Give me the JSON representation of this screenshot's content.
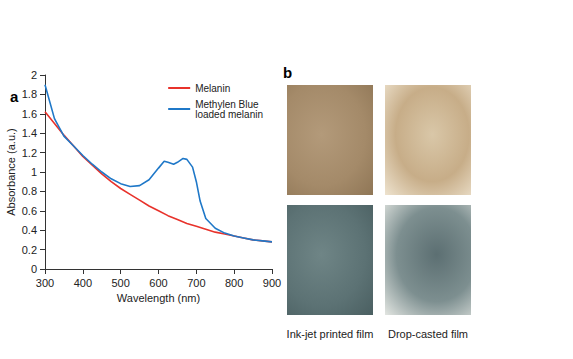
{
  "panel_a": {
    "label": "a"
  },
  "chart_data": {
    "type": "line",
    "x_label": "Wavelength (nm)",
    "y_label": "Absorbance (a.u.)",
    "xlim": [
      300,
      900
    ],
    "xticks": [
      300,
      400,
      500,
      600,
      700,
      800,
      900
    ],
    "ylim": [
      0,
      2
    ],
    "yticks": [
      0,
      0.2,
      0.4,
      0.6,
      0.8,
      1,
      1.2,
      1.4,
      1.6,
      1.8,
      2
    ],
    "grid": false,
    "legend": "upper right",
    "series": [
      {
        "name": "Melanin",
        "color": "#e8322b",
        "x": [
          300,
          325,
          350,
          375,
          400,
          425,
          450,
          475,
          500,
          525,
          550,
          575,
          600,
          625,
          650,
          675,
          700,
          725,
          750,
          775,
          800,
          825,
          850,
          875,
          900
        ],
        "values": [
          1.62,
          1.5,
          1.38,
          1.27,
          1.16,
          1.07,
          0.98,
          0.9,
          0.83,
          0.77,
          0.71,
          0.65,
          0.6,
          0.55,
          0.51,
          0.47,
          0.44,
          0.41,
          0.38,
          0.36,
          0.34,
          0.32,
          0.3,
          0.29,
          0.28
        ]
      },
      {
        "name": "Methylen Blue loaded melanin",
        "color": "#1f78c8",
        "x": [
          300,
          325,
          350,
          375,
          400,
          425,
          450,
          475,
          500,
          525,
          550,
          575,
          600,
          615,
          625,
          640,
          650,
          665,
          675,
          690,
          700,
          710,
          725,
          750,
          775,
          800,
          825,
          850,
          875,
          900
        ],
        "values": [
          1.9,
          1.55,
          1.37,
          1.27,
          1.17,
          1.08,
          1.0,
          0.93,
          0.88,
          0.85,
          0.86,
          0.92,
          1.04,
          1.11,
          1.1,
          1.08,
          1.1,
          1.14,
          1.13,
          1.05,
          0.9,
          0.7,
          0.52,
          0.42,
          0.37,
          0.34,
          0.32,
          0.3,
          0.29,
          0.28
        ]
      }
    ]
  },
  "panel_b": {
    "label": "b",
    "captions": [
      "Ink-jet printed film",
      "Drop-casted film"
    ]
  }
}
